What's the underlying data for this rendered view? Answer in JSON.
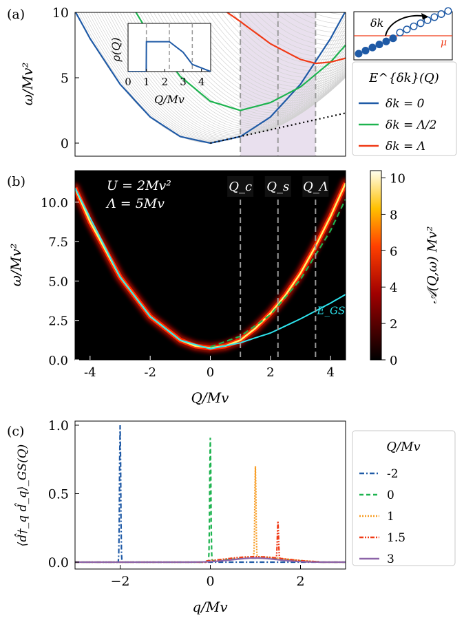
{
  "panel_labels": {
    "a": "(a)",
    "b": "(b)",
    "c": "(c)"
  },
  "chart_data": [
    {
      "id": "a",
      "type": "line",
      "xlim": [
        -4.5,
        4.5
      ],
      "ylim": [
        -1,
        10
      ],
      "yticks": [
        0,
        5,
        10
      ],
      "ylabel": "ω/Mv²",
      "vlines": [
        1,
        2.25,
        3.5
      ],
      "shaded_region": [
        1,
        3.5
      ],
      "series": [
        {
          "name": "δk = 0",
          "color": "#1f5aa6",
          "x": [
            -4.5,
            -4,
            -3,
            -2,
            -1,
            0,
            1,
            2,
            3,
            4,
            4.5
          ],
          "values": [
            10.1,
            8,
            4.5,
            2,
            0.5,
            0,
            0.5,
            2,
            4.5,
            8,
            10.1
          ]
        },
        {
          "name": "δk = Λ/2",
          "color": "#1db34f",
          "x": [
            -2.5,
            -2,
            -1,
            0,
            1,
            2,
            2.5,
            3,
            4,
            4.5
          ],
          "values": [
            10.1,
            8.2,
            5.1,
            3.2,
            2.5,
            3.1,
            3.7,
            4.3,
            6.2,
            7.5
          ]
        },
        {
          "name": "δk = Λ",
          "color": "#f03a16",
          "x": [
            0.5,
            1,
            2,
            3,
            3.5,
            4,
            4.5
          ],
          "values": [
            10.1,
            9.3,
            7.6,
            6.4,
            6.1,
            6.2,
            6.5
          ]
        }
      ],
      "continuum_lower_edge": {
        "x": [
          0,
          4.5
        ],
        "values": [
          0,
          2.3
        ]
      },
      "legend": {
        "title": "E^{δk}(Q)",
        "entries": [
          "δk = 0",
          "δk = Λ/2",
          "δk = Λ"
        ]
      },
      "inset": {
        "ylabel": "ρ(Q)",
        "xlabel": "Q/Mv",
        "xticks": [
          0,
          1,
          2,
          3,
          4
        ],
        "x": [
          0,
          0.99,
          1,
          1.2,
          2.25,
          3,
          3.5,
          4.5
        ],
        "values": [
          0,
          0,
          0.62,
          0.62,
          0.62,
          0.4,
          0.15,
          0
        ],
        "vlines": [
          1,
          2.25,
          3.5
        ]
      },
      "schematic": {
        "label": "δk",
        "mu_label": "μ",
        "filled_count": 6,
        "empty_count": 8
      }
    },
    {
      "id": "b",
      "type": "heatmap",
      "xlim": [
        -4.5,
        4.5
      ],
      "ylim": [
        0,
        12
      ],
      "xticks": [
        -4,
        -2,
        0,
        2,
        4
      ],
      "xtick_labels": [
        "-4",
        "-2",
        "0",
        "2",
        "4"
      ],
      "yticks": [
        0,
        2.5,
        5,
        7.5,
        10
      ],
      "ytick_labels": [
        "0.0",
        "2.5",
        "5.0",
        "7.5",
        "10.0"
      ],
      "xlabel": "Q/Mv",
      "ylabel": "ω/Mv²",
      "annotations": [
        "U = 2Mv²",
        "Λ = 5Mv"
      ],
      "vlines": [
        {
          "x": 1,
          "label": "Q_c"
        },
        {
          "x": 2.25,
          "label": "Q_s"
        },
        {
          "x": 3.5,
          "label": "Q_Λ"
        }
      ],
      "colorbar": {
        "label": "𝒜(Q,ω) Mv²",
        "min": 0,
        "max": 10.4,
        "ticks": [
          0,
          2,
          4,
          6,
          8,
          10
        ]
      },
      "main_band": {
        "x": [
          -4.5,
          -4,
          -3,
          -2,
          -1,
          -0.5,
          0,
          0.5,
          1,
          1.5,
          2,
          2.5,
          3,
          3.5,
          4,
          4.5
        ],
        "values": [
          10.9,
          8.75,
          5.25,
          2.75,
          1.25,
          0.88,
          0.75,
          0.88,
          1.25,
          2,
          2.95,
          4.1,
          5.5,
          7.2,
          9.1,
          11.2
        ]
      },
      "dashed_green": {
        "x": [
          0,
          1,
          2,
          3,
          4,
          4.5
        ],
        "values": [
          0.82,
          1.5,
          2.85,
          5.1,
          8.2,
          10.2
        ]
      },
      "ground_state": {
        "name": "E_GS",
        "color": "#2ee6f0",
        "x": [
          -4.5,
          -3,
          -2,
          -1,
          0,
          1,
          1.5,
          2,
          3,
          4,
          4.5
        ],
        "values": [
          10.9,
          5.25,
          2.75,
          1.25,
          0.7,
          1.08,
          1.4,
          1.7,
          2.6,
          3.6,
          4.15
        ]
      }
    },
    {
      "id": "c",
      "type": "line",
      "xlim": [
        -3,
        3
      ],
      "ylim": [
        -0.05,
        1.03
      ],
      "xticks": [
        -2,
        0,
        2
      ],
      "xtick_labels": [
        "−2",
        "0",
        "2"
      ],
      "yticks": [
        0,
        0.5,
        1
      ],
      "ytick_labels": [
        "0.0",
        "0.5",
        "1.0"
      ],
      "xlabel": "q/Mv",
      "ylabel": "⟨d̂†_q d̂_q⟩_GS(Q)",
      "legend": {
        "title": "Q/Mv",
        "entries": [
          "-2",
          "0",
          "1",
          "1.5",
          "3"
        ]
      },
      "series": [
        {
          "name": "-2",
          "color": "#1f5aa6",
          "dash": "7 3 2 3",
          "peak_x": -2,
          "peak": 1.0,
          "bump": 0.0
        },
        {
          "name": "0",
          "color": "#1db34f",
          "dash": "6 4",
          "peak_x": 0,
          "peak": 0.9,
          "bump": 0.03
        },
        {
          "name": "1",
          "color": "#f79a1e",
          "dash": "2 2",
          "peak_x": 1,
          "peak": 0.66,
          "bump": 0.04
        },
        {
          "name": "1.5",
          "color": "#f03a16",
          "dash": "6 2 2 2 2 2",
          "peak_x": 1.5,
          "peak": 0.27,
          "bump": 0.04
        },
        {
          "name": "3",
          "color": "#8c64a8",
          "dash": "",
          "peak_x": 0.9,
          "peak": 0.03,
          "bump": 0.0
        }
      ]
    }
  ]
}
